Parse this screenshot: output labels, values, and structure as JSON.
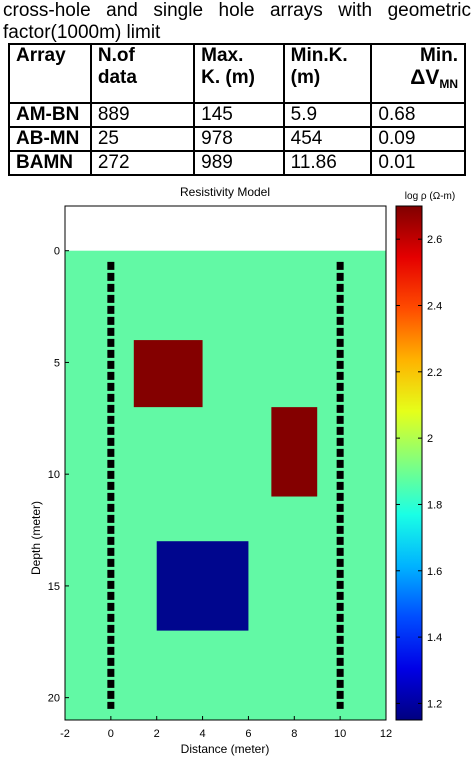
{
  "caption": {
    "line1": "cross-hole and single hole arrays with geometric",
    "line2": "factor(1000m) limit"
  },
  "table": {
    "headers": {
      "array": "Array",
      "ndata_1": "N.of",
      "ndata_2": "data",
      "maxk_1": "Max.",
      "maxk_2": "K. (m)",
      "mink_1": "Min.K.",
      "mink_2": "(m)",
      "mindv_1": "Min.",
      "mindv_2": "ΔV",
      "mindv_sub": "MN"
    },
    "rows": [
      {
        "array": "AM-BN",
        "ndata": "889",
        "maxk": "145",
        "mink": "5.9",
        "mindv": "0.68"
      },
      {
        "array": "AB-MN",
        "ndata": "25",
        "maxk": "978",
        "mink": "454",
        "mindv": "0.09"
      },
      {
        "array": "BAMN",
        "ndata": "272",
        "maxk": "989",
        "mink": "11.86",
        "mindv": "0.01"
      }
    ]
  },
  "chart_data": {
    "type": "heatmap",
    "title": "Resistivity Model",
    "xlabel": "Distance (meter)",
    "ylabel": "Depth (meter)",
    "xlim": [
      -2,
      12
    ],
    "ylim": [
      -2,
      21
    ],
    "x_ticks": [
      -2,
      0,
      2,
      4,
      6,
      8,
      10,
      12
    ],
    "y_ticks": [
      0,
      5,
      10,
      15,
      20
    ],
    "background_log_rho": 1.9,
    "air_layer": {
      "depth_from": -2,
      "depth_to": 0,
      "color": "#ffffff"
    },
    "blocks": [
      {
        "x": [
          1,
          4
        ],
        "depth": [
          4,
          7
        ],
        "log_rho": 2.7
      },
      {
        "x": [
          7,
          9
        ],
        "depth": [
          7,
          11
        ],
        "log_rho": 2.7
      },
      {
        "x": [
          2,
          6
        ],
        "depth": [
          13,
          17
        ],
        "log_rho": 1.2
      }
    ],
    "boreholes": [
      {
        "x": 0,
        "depth": [
          0.5,
          20.5
        ]
      },
      {
        "x": 10,
        "depth": [
          0.5,
          20.5
        ]
      }
    ],
    "colorbar": {
      "label": "log ρ (Ω-m)",
      "min": 1.15,
      "max": 2.7,
      "ticks": [
        1.2,
        1.4,
        1.6,
        1.8,
        2,
        2.2,
        2.4,
        2.6
      ]
    },
    "colors": {
      "background": "#62f9a5",
      "high": "#840000",
      "low": "#00068e"
    }
  }
}
